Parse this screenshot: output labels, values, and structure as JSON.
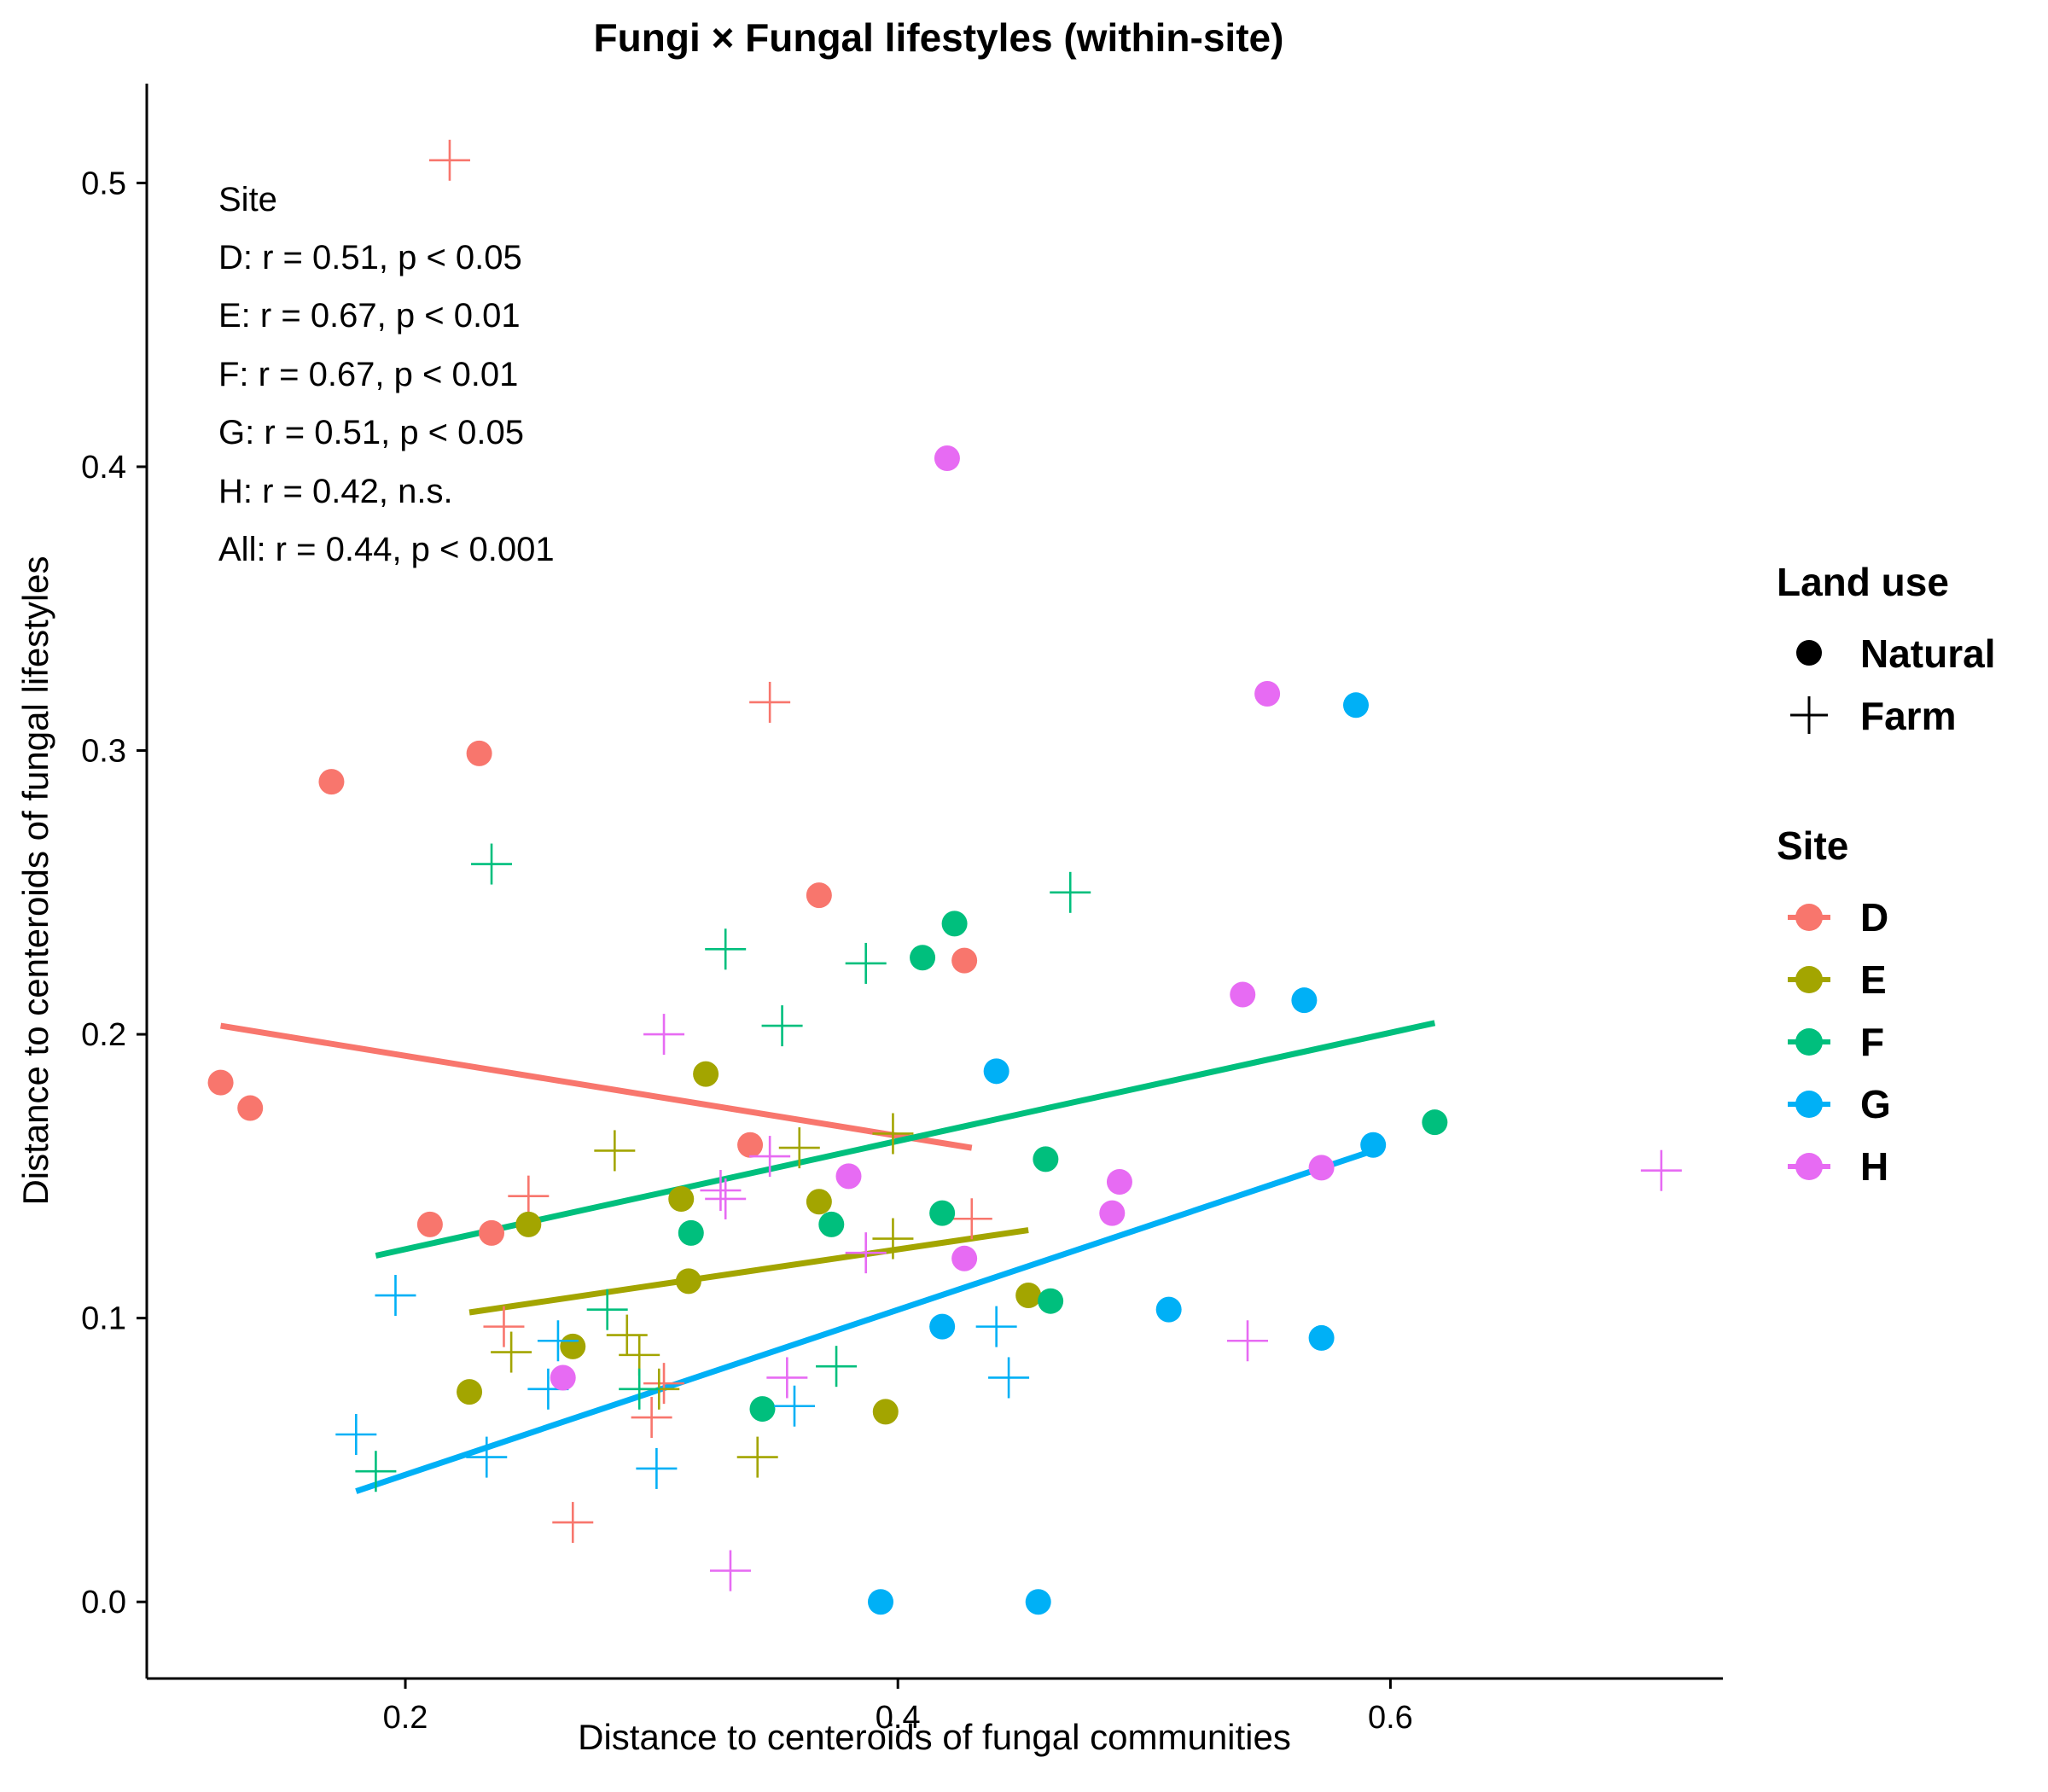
{
  "chart_data": {
    "type": "scatter",
    "title": "Fungi × Fungal lifestyles (within-site)",
    "xlabel": "Distance to centeroids of fungal communities",
    "ylabel": "Distance to centeroids of fungal lifestyles",
    "xlim": [
      0.095,
      0.735
    ],
    "ylim": [
      -0.027,
      0.535
    ],
    "x_ticks": [
      0.2,
      0.4,
      0.6
    ],
    "x_tick_labels": [
      "0.2",
      "0.4",
      "0.6"
    ],
    "y_ticks": [
      0.0,
      0.1,
      0.2,
      0.3,
      0.4,
      0.5
    ],
    "y_tick_labels": [
      "0.0",
      "0.1",
      "0.2",
      "0.3",
      "0.4",
      "0.5"
    ],
    "grid": false,
    "annotation": {
      "title": "Site",
      "lines": [
        "D: r = 0.51, p < 0.05",
        "E: r = 0.67, p < 0.01",
        "F: r = 0.67, p < 0.01",
        "G: r = 0.51, p < 0.05",
        "H: r = 0.42, n.s.",
        "All: r = 0.44, p < 0.001"
      ]
    },
    "legend": {
      "placement": "right",
      "land_use": {
        "title": "Land use",
        "items": [
          {
            "label": "Natural",
            "shape": "circle"
          },
          {
            "label": "Farm",
            "shape": "plus"
          }
        ]
      },
      "site": {
        "title": "Site",
        "items": [
          {
            "label": "D",
            "color": "#F8766D"
          },
          {
            "label": "E",
            "color": "#A3A500"
          },
          {
            "label": "F",
            "color": "#00BF7D"
          },
          {
            "label": "G",
            "color": "#00B0F6"
          },
          {
            "label": "H",
            "color": "#E76BF3"
          }
        ]
      }
    },
    "series": [
      {
        "name": "D",
        "color": "#F8766D",
        "natural": [
          [
            0.125,
            0.183
          ],
          [
            0.137,
            0.174
          ],
          [
            0.17,
            0.289
          ],
          [
            0.21,
            0.133
          ],
          [
            0.23,
            0.299
          ],
          [
            0.235,
            0.13
          ],
          [
            0.34,
            0.161
          ],
          [
            0.368,
            0.249
          ],
          [
            0.427,
            0.226
          ]
        ],
        "farm": [
          [
            0.218,
            0.508
          ],
          [
            0.348,
            0.317
          ],
          [
            0.24,
            0.097
          ],
          [
            0.25,
            0.143
          ],
          [
            0.268,
            0.028
          ],
          [
            0.3,
            0.065
          ],
          [
            0.305,
            0.077
          ],
          [
            0.43,
            0.135
          ]
        ],
        "fit": [
          [
            0.125,
            0.203
          ],
          [
            0.43,
            0.16
          ]
        ]
      },
      {
        "name": "E",
        "color": "#A3A500",
        "natural": [
          [
            0.226,
            0.074
          ],
          [
            0.25,
            0.133
          ],
          [
            0.268,
            0.09
          ],
          [
            0.312,
            0.142
          ],
          [
            0.315,
            0.113
          ],
          [
            0.322,
            0.186
          ],
          [
            0.368,
            0.141
          ],
          [
            0.395,
            0.067
          ],
          [
            0.453,
            0.108
          ]
        ],
        "farm": [
          [
            0.243,
            0.088
          ],
          [
            0.285,
            0.159
          ],
          [
            0.29,
            0.094
          ],
          [
            0.295,
            0.087
          ],
          [
            0.303,
            0.075
          ],
          [
            0.343,
            0.051
          ],
          [
            0.36,
            0.16
          ],
          [
            0.398,
            0.165
          ],
          [
            0.398,
            0.128
          ]
        ],
        "fit": [
          [
            0.226,
            0.102
          ],
          [
            0.453,
            0.131
          ]
        ]
      },
      {
        "name": "F",
        "color": "#00BF7D",
        "natural": [
          [
            0.316,
            0.13
          ],
          [
            0.345,
            0.068
          ],
          [
            0.373,
            0.133
          ],
          [
            0.41,
            0.227
          ],
          [
            0.418,
            0.137
          ],
          [
            0.423,
            0.239
          ],
          [
            0.46,
            0.156
          ],
          [
            0.462,
            0.106
          ],
          [
            0.618,
            0.169
          ]
        ],
        "farm": [
          [
            0.188,
            0.046
          ],
          [
            0.235,
            0.26
          ],
          [
            0.282,
            0.103
          ],
          [
            0.295,
            0.075
          ],
          [
            0.33,
            0.23
          ],
          [
            0.353,
            0.203
          ],
          [
            0.375,
            0.083
          ],
          [
            0.387,
            0.225
          ],
          [
            0.47,
            0.25
          ]
        ],
        "fit": [
          [
            0.188,
            0.122
          ],
          [
            0.618,
            0.204
          ]
        ]
      },
      {
        "name": "G",
        "color": "#00B0F6",
        "natural": [
          [
            0.393,
            0.0
          ],
          [
            0.418,
            0.097
          ],
          [
            0.44,
            0.187
          ],
          [
            0.457,
            0.0
          ],
          [
            0.51,
            0.103
          ],
          [
            0.565,
            0.212
          ],
          [
            0.572,
            0.093
          ],
          [
            0.586,
            0.316
          ],
          [
            0.593,
            0.161
          ]
        ],
        "farm": [
          [
            0.18,
            0.059
          ],
          [
            0.196,
            0.108
          ],
          [
            0.233,
            0.051
          ],
          [
            0.258,
            0.075
          ],
          [
            0.262,
            0.092
          ],
          [
            0.302,
            0.047
          ],
          [
            0.358,
            0.069
          ],
          [
            0.44,
            0.097
          ],
          [
            0.445,
            0.079
          ]
        ],
        "fit": [
          [
            0.18,
            0.039
          ],
          [
            0.593,
            0.159
          ]
        ]
      },
      {
        "name": "H",
        "color": "#E76BF3",
        "natural": [
          [
            0.264,
            0.079
          ],
          [
            0.38,
            0.15
          ],
          [
            0.42,
            0.403
          ],
          [
            0.427,
            0.121
          ],
          [
            0.487,
            0.137
          ],
          [
            0.49,
            0.148
          ],
          [
            0.54,
            0.214
          ],
          [
            0.55,
            0.32
          ],
          [
            0.572,
            0.153
          ]
        ],
        "farm": [
          [
            0.305,
            0.2
          ],
          [
            0.328,
            0.145
          ],
          [
            0.33,
            0.142
          ],
          [
            0.332,
            0.011
          ],
          [
            0.348,
            0.157
          ],
          [
            0.355,
            0.079
          ],
          [
            0.387,
            0.123
          ],
          [
            0.542,
            0.092
          ],
          [
            0.71,
            0.152
          ]
        ],
        "fit": null
      }
    ]
  }
}
